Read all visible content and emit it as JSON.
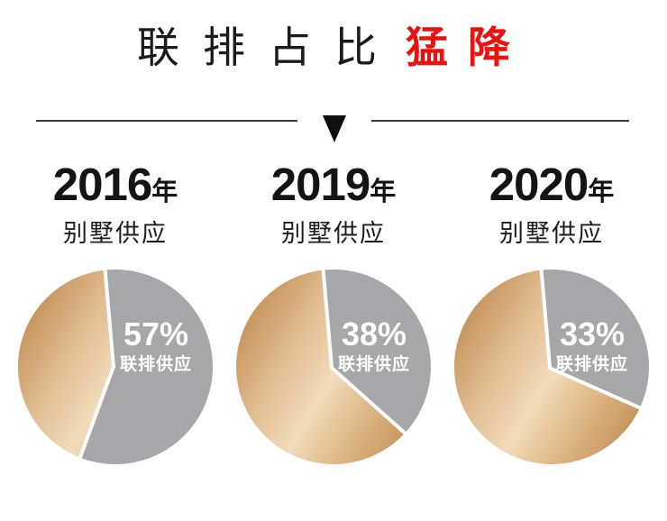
{
  "header": {
    "title": "联排占比",
    "title_highlight": "猛降"
  },
  "chart_data": {
    "type": "pie",
    "title": "联排占比猛降",
    "legend_position": "none",
    "start_angle_deg": -5,
    "charts": [
      {
        "year": "2016",
        "year_suffix": "年",
        "subtitle": "别墅供应",
        "highlight": {
          "pct": 57,
          "display": "57%",
          "label": "联排供应"
        },
        "remainder_pct": 43
      },
      {
        "year": "2019",
        "year_suffix": "年",
        "subtitle": "别墅供应",
        "highlight": {
          "pct": 38,
          "display": "38%",
          "label": "联排供应"
        },
        "remainder_pct": 62
      },
      {
        "year": "2020",
        "year_suffix": "年",
        "subtitle": "别墅供应",
        "highlight": {
          "pct": 33,
          "display": "33%",
          "label": "联排供应"
        },
        "remainder_pct": 67
      }
    ],
    "colors": {
      "highlight_slice": "#a7a6a8",
      "slice_divider": "#ffffff",
      "title_accent": "#e8120e",
      "gold_gradient": [
        {
          "offset": "0%",
          "color": "#bf8a50"
        },
        {
          "offset": "30%",
          "color": "#e2bd92"
        },
        {
          "offset": "52%",
          "color": "#f1dcba"
        },
        {
          "offset": "72%",
          "color": "#e0b888"
        },
        {
          "offset": "100%",
          "color": "#c08c50"
        }
      ]
    }
  }
}
